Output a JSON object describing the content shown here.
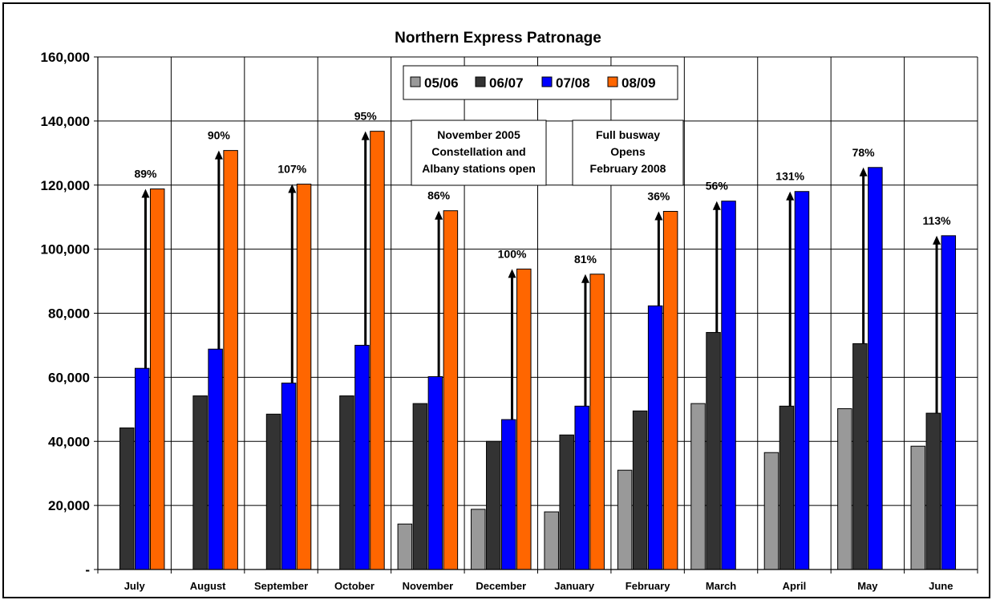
{
  "chart_data": {
    "type": "bar",
    "title": "Northern Express Patronage",
    "xlabel": "",
    "ylabel": "",
    "ylim": [
      0,
      160000
    ],
    "yticks": [
      0,
      20000,
      40000,
      60000,
      80000,
      100000,
      120000,
      140000,
      160000
    ],
    "ytick_labels": [
      "-",
      "20,000",
      "40,000",
      "60,000",
      "80,000",
      "100,000",
      "120,000",
      "140,000",
      "160,000"
    ],
    "grid": true,
    "legend_position": "top-center",
    "categories": [
      "July",
      "August",
      "September",
      "October",
      "November",
      "December",
      "January",
      "February",
      "March",
      "April",
      "May",
      "June"
    ],
    "series": [
      {
        "name": "05/06",
        "color": "#999999",
        "values": [
          null,
          null,
          null,
          null,
          14200,
          18800,
          18000,
          31000,
          51800,
          36500,
          50200,
          38500
        ]
      },
      {
        "name": "06/07",
        "color": "#333333",
        "values": [
          44200,
          54200,
          48500,
          54200,
          51800,
          40000,
          42000,
          49500,
          74000,
          51000,
          70500,
          48800
        ]
      },
      {
        "name": "07/08",
        "color": "#0000ff",
        "values": [
          62800,
          68800,
          58200,
          70000,
          60200,
          46800,
          51000,
          82300,
          115000,
          118000,
          125500,
          104200
        ]
      },
      {
        "name": "08/09",
        "color": "#ff6600",
        "values": [
          118800,
          130800,
          120300,
          136800,
          112000,
          93800,
          92200,
          111800,
          null,
          null,
          null,
          null
        ]
      }
    ],
    "growth_arrows": [
      {
        "category": "July",
        "label": "89%",
        "from": 62800,
        "to": 118800
      },
      {
        "category": "August",
        "label": "90%",
        "from": 68800,
        "to": 130800
      },
      {
        "category": "September",
        "label": "107%",
        "from": 58200,
        "to": 120300
      },
      {
        "category": "October",
        "label": "95%",
        "from": 70000,
        "to": 136800
      },
      {
        "category": "November",
        "label": "86%",
        "from": 60200,
        "to": 112000
      },
      {
        "category": "December",
        "label": "100%",
        "from": 46800,
        "to": 93800
      },
      {
        "category": "January",
        "label": "81%",
        "from": 51000,
        "to": 92200
      },
      {
        "category": "February",
        "label": "36%",
        "from": 82300,
        "to": 111800
      },
      {
        "category": "March",
        "label": "56%",
        "from": 74000,
        "to": 115000
      },
      {
        "category": "April",
        "label": "131%",
        "from": 51000,
        "to": 118000
      },
      {
        "category": "May",
        "label": "78%",
        "from": 70500,
        "to": 125500
      },
      {
        "category": "June",
        "label": "113%",
        "from": 48800,
        "to": 104200
      }
    ],
    "annotations": [
      {
        "lines": [
          "November 2005",
          "Constellation and",
          "Albany stations  open"
        ]
      },
      {
        "lines": [
          "Full busway",
          "Opens",
          "February 2008"
        ]
      }
    ]
  }
}
